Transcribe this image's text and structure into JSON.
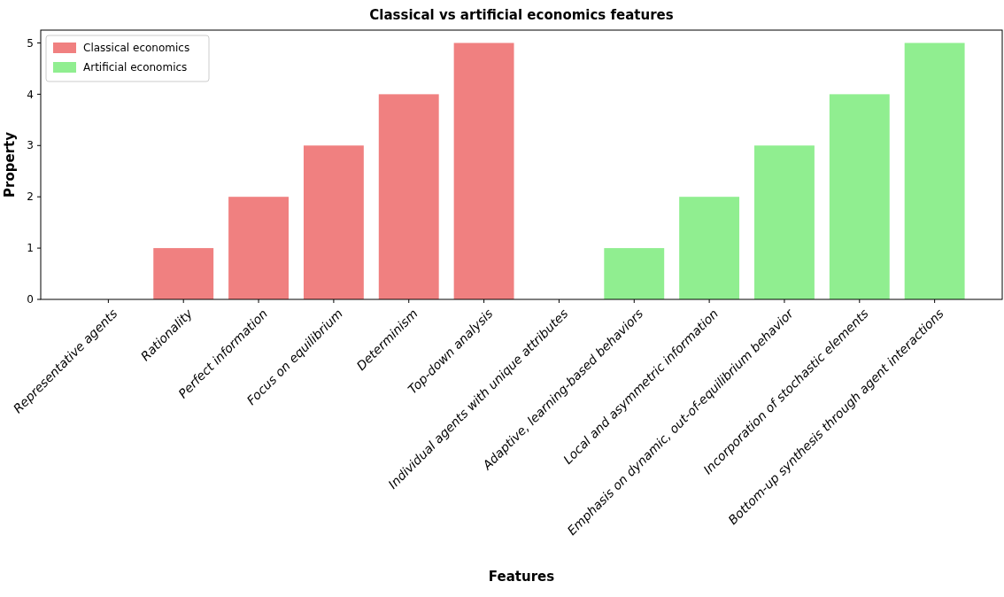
{
  "chart_data": {
    "type": "bar",
    "title": "Classical vs artificial economics features",
    "xlabel": "Features",
    "ylabel": "Property",
    "categories": [
      "Representative agents",
      "Rationality",
      "Perfect information",
      "Focus on equilibrium",
      "Determinism",
      "Top-down analysis",
      "Individual agents with unique attributes",
      "Adaptive, learning-based behaviors",
      "Local and asymmetric information",
      "Emphasis on dynamic, out-of-equilibrium behavior",
      "Incorporation of stochastic elements",
      "Bottom-up synthesis through agent interactions"
    ],
    "series": [
      {
        "name": "Classical economics",
        "color": "#f08080",
        "values": [
          0,
          1,
          2,
          3,
          4,
          5,
          null,
          null,
          null,
          null,
          null,
          null
        ]
      },
      {
        "name": "Artificial economics",
        "color": "#90ee90",
        "values": [
          null,
          null,
          null,
          null,
          null,
          null,
          0,
          1,
          2,
          3,
          4,
          5
        ]
      }
    ],
    "ylim": [
      0,
      5.25
    ],
    "yticks": [
      0,
      1,
      2,
      3,
      4,
      5
    ],
    "legend": "top left"
  }
}
